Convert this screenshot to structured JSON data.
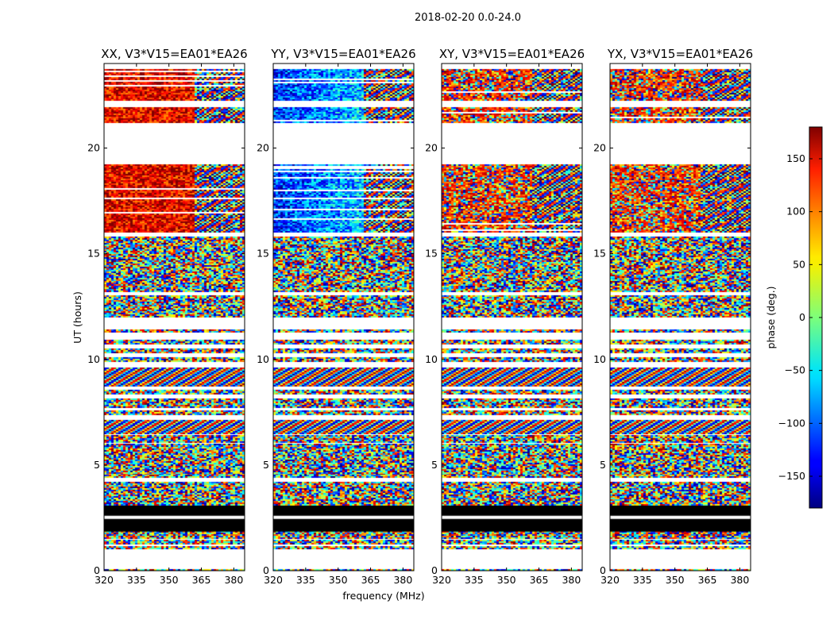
{
  "chart_data": {
    "type": "heatmap",
    "suptitle": "2018-02-20 0.0-24.0",
    "xlabel": "frequency (MHz)",
    "ylabel": "UT (hours)",
    "xlim": [
      320,
      385
    ],
    "ylim": [
      0,
      24
    ],
    "xticks": [
      320,
      335,
      350,
      365,
      380
    ],
    "yticks": [
      0,
      5,
      10,
      15,
      20
    ],
    "panels": [
      {
        "title": "XX, V3*V15=EA01*EA26",
        "base_phase": 140,
        "pattern": "warm"
      },
      {
        "title": "YY, V3*V15=EA01*EA26",
        "base_phase": -120,
        "pattern": "cool"
      },
      {
        "title": "XY, V3*V15=EA01*EA26",
        "base_phase": 120,
        "pattern": "noise"
      },
      {
        "title": "YX, V3*V15=EA01*EA26",
        "base_phase": 120,
        "pattern": "noise"
      }
    ],
    "colorbar": {
      "label": "phase (deg.)",
      "range": [
        -180,
        180
      ],
      "ticks": [
        150,
        100,
        50,
        0,
        -50,
        -100,
        -150
      ],
      "tick_labels": [
        "150",
        "100",
        "50",
        "0",
        "−50",
        "−100",
        "−150"
      ],
      "colormap": "jet"
    },
    "time_bands_hours": [
      {
        "start": 0.0,
        "end": 0.05,
        "kind": "noise"
      },
      {
        "start": 1.05,
        "end": 1.15,
        "kind": "noise"
      },
      {
        "start": 1.3,
        "end": 1.45,
        "kind": "noise"
      },
      {
        "start": 1.55,
        "end": 1.85,
        "kind": "noise"
      },
      {
        "start": 1.85,
        "end": 2.45,
        "kind": "black"
      },
      {
        "start": 2.6,
        "end": 3.1,
        "kind": "black"
      },
      {
        "start": 3.15,
        "end": 3.5,
        "kind": "noise"
      },
      {
        "start": 3.55,
        "end": 4.2,
        "kind": "noise"
      },
      {
        "start": 4.45,
        "end": 4.6,
        "kind": "noise"
      },
      {
        "start": 4.65,
        "end": 6.0,
        "kind": "noise"
      },
      {
        "start": 6.1,
        "end": 6.4,
        "kind": "noise"
      },
      {
        "start": 6.5,
        "end": 7.1,
        "kind": "fringe"
      },
      {
        "start": 7.4,
        "end": 7.55,
        "kind": "noise"
      },
      {
        "start": 7.75,
        "end": 8.15,
        "kind": "noise"
      },
      {
        "start": 8.4,
        "end": 8.55,
        "kind": "noise"
      },
      {
        "start": 8.75,
        "end": 9.6,
        "kind": "fringe"
      },
      {
        "start": 9.9,
        "end": 10.1,
        "kind": "noise"
      },
      {
        "start": 10.35,
        "end": 10.5,
        "kind": "noise"
      },
      {
        "start": 10.75,
        "end": 10.9,
        "kind": "noise"
      },
      {
        "start": 11.3,
        "end": 11.4,
        "kind": "noise"
      },
      {
        "start": 12.0,
        "end": 13.0,
        "kind": "noise"
      },
      {
        "start": 13.25,
        "end": 13.45,
        "kind": "noise"
      },
      {
        "start": 13.55,
        "end": 14.2,
        "kind": "noise"
      },
      {
        "start": 14.3,
        "end": 15.1,
        "kind": "noise"
      },
      {
        "start": 15.2,
        "end": 15.8,
        "kind": "noise"
      },
      {
        "start": 16.0,
        "end": 19.2,
        "kind": "signal"
      },
      {
        "start": 21.2,
        "end": 21.9,
        "kind": "signal"
      },
      {
        "start": 22.25,
        "end": 23.7,
        "kind": "signal"
      }
    ]
  }
}
